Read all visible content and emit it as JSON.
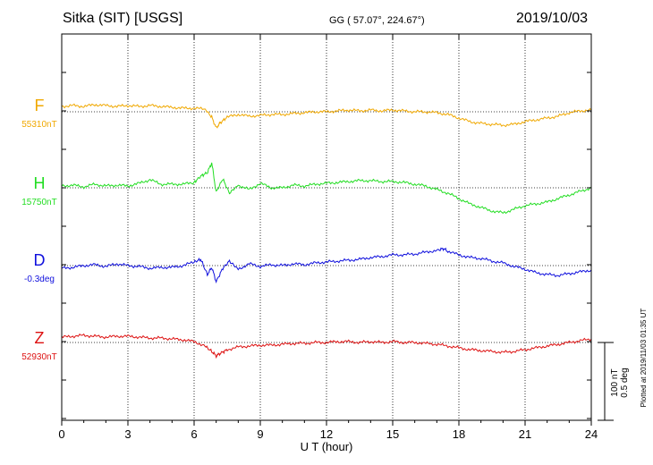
{
  "header": {
    "station": "Sitka (SIT)  [USGS]",
    "coords": "GG ( 57.07°, 224.67°)",
    "date": "2019/10/03"
  },
  "plotted_note": "Plotted at 2019/11/03 01:35 UT",
  "scale_bar": {
    "line1": "100 nT",
    "line2": "0.5 deg"
  },
  "chart_data": {
    "type": "line",
    "xlabel": "U T (hour)",
    "xlim": [
      0,
      24
    ],
    "xticks": [
      0,
      3,
      6,
      9,
      12,
      15,
      18,
      21,
      24
    ],
    "grid": true,
    "series": [
      {
        "name": "F",
        "baseline_label": "55310nT",
        "color": "#f0a800",
        "x": [
          0,
          0.5,
          1,
          1.5,
          2,
          2.5,
          3,
          3.5,
          4,
          4.5,
          5,
          5.5,
          6,
          6.5,
          6.8,
          7,
          7.2,
          7.5,
          8,
          8.5,
          9,
          9.5,
          10,
          10.5,
          11,
          11.5,
          12,
          12.5,
          13,
          13.5,
          14,
          14.5,
          15,
          15.5,
          16,
          16.5,
          17,
          17.5,
          18,
          18.5,
          19,
          19.5,
          20,
          20.5,
          21,
          21.5,
          22,
          22.5,
          23,
          23.5,
          24
        ],
        "y": [
          6,
          7,
          6,
          8,
          7,
          6,
          7,
          6,
          7,
          6,
          5,
          4,
          4,
          3,
          -6,
          -18,
          -12,
          -6,
          -3,
          -5,
          -4,
          -3,
          -3,
          -2,
          -1,
          0,
          0,
          1,
          2,
          1,
          2,
          1,
          2,
          1,
          0,
          0,
          -1,
          -3,
          -7,
          -11,
          -13,
          -14,
          -15,
          -14,
          -11,
          -9,
          -7,
          -5,
          -1,
          1,
          2
        ]
      },
      {
        "name": "H",
        "baseline_label": "15750nT",
        "color": "#22dd22",
        "x": [
          0,
          0.5,
          1,
          1.5,
          2,
          2.5,
          3,
          3.5,
          4,
          4.5,
          5,
          5.5,
          6,
          6.3,
          6.6,
          6.8,
          7,
          7.3,
          7.6,
          8,
          8.5,
          9,
          9.5,
          10,
          10.5,
          11,
          11.5,
          12,
          12.5,
          13,
          13.5,
          14,
          14.5,
          15,
          15.5,
          16,
          16.5,
          17,
          17.5,
          18,
          18.5,
          19,
          19.5,
          20,
          20.5,
          21,
          21.5,
          22,
          22.5,
          23,
          23.5,
          24
        ],
        "y": [
          2,
          3,
          1,
          4,
          2,
          3,
          2,
          5,
          9,
          4,
          4,
          4,
          6,
          13,
          17,
          28,
          -5,
          10,
          -6,
          3,
          -2,
          5,
          0,
          0,
          3,
          2,
          4,
          5,
          6,
          7,
          8,
          8,
          7,
          7,
          6,
          4,
          2,
          -2,
          -6,
          -12,
          -18,
          -22,
          -26,
          -28,
          -24,
          -20,
          -18,
          -16,
          -12,
          -8,
          -4,
          0
        ]
      },
      {
        "name": "D",
        "baseline_label": "-0.3deg",
        "color": "#1010dd",
        "x": [
          0,
          0.5,
          1,
          1.5,
          2,
          2.5,
          3,
          3.5,
          4,
          4.5,
          5,
          5.5,
          6,
          6.3,
          6.6,
          6.8,
          7,
          7.3,
          7.6,
          8,
          8.5,
          9,
          9.5,
          10,
          10.5,
          11,
          11.5,
          12,
          12.5,
          13,
          13.5,
          14,
          14.5,
          15,
          15.5,
          16,
          16.5,
          17,
          17.3,
          17.5,
          18,
          18.5,
          19,
          19.5,
          20,
          20.5,
          21,
          21.5,
          22,
          22.5,
          23,
          23.5,
          24
        ],
        "y": [
          -3,
          -2,
          0,
          1,
          -1,
          2,
          0,
          -1,
          -3,
          -2,
          -2,
          0,
          4,
          7,
          -10,
          -2,
          -18,
          -3,
          5,
          -4,
          2,
          -1,
          1,
          0,
          2,
          1,
          3,
          4,
          5,
          6,
          7,
          9,
          10,
          12,
          12,
          13,
          15,
          17,
          19,
          16,
          12,
          9,
          8,
          5,
          3,
          -1,
          -4,
          -8,
          -10,
          -11,
          -9,
          -7,
          -5
        ]
      },
      {
        "name": "Z",
        "baseline_label": "52930nT",
        "color": "#dd1111",
        "x": [
          0,
          0.5,
          1,
          1.5,
          2,
          2.5,
          3,
          3.5,
          4,
          4.5,
          5,
          5.5,
          6,
          6.5,
          6.8,
          7,
          7.2,
          7.5,
          8,
          8.5,
          9,
          9.5,
          10,
          10.5,
          11,
          11.5,
          12,
          12.5,
          13,
          13.5,
          14,
          14.5,
          15,
          15.5,
          16,
          16.5,
          17,
          17.5,
          18,
          18.5,
          19,
          19.5,
          20,
          20.5,
          21,
          21.5,
          22,
          22.5,
          23,
          23.5,
          24
        ],
        "y": [
          6,
          7,
          8,
          7,
          6,
          7,
          7,
          6,
          5,
          5,
          4,
          3,
          1,
          -4,
          -10,
          -15,
          -12,
          -8,
          -5,
          -4,
          -3,
          -3,
          -2,
          -1,
          -1,
          0,
          0,
          1,
          1,
          0,
          1,
          0,
          1,
          0,
          0,
          -1,
          -2,
          -4,
          -6,
          -8,
          -9,
          -10,
          -11,
          -10,
          -8,
          -6,
          -4,
          -2,
          0,
          2,
          4
        ]
      }
    ]
  }
}
